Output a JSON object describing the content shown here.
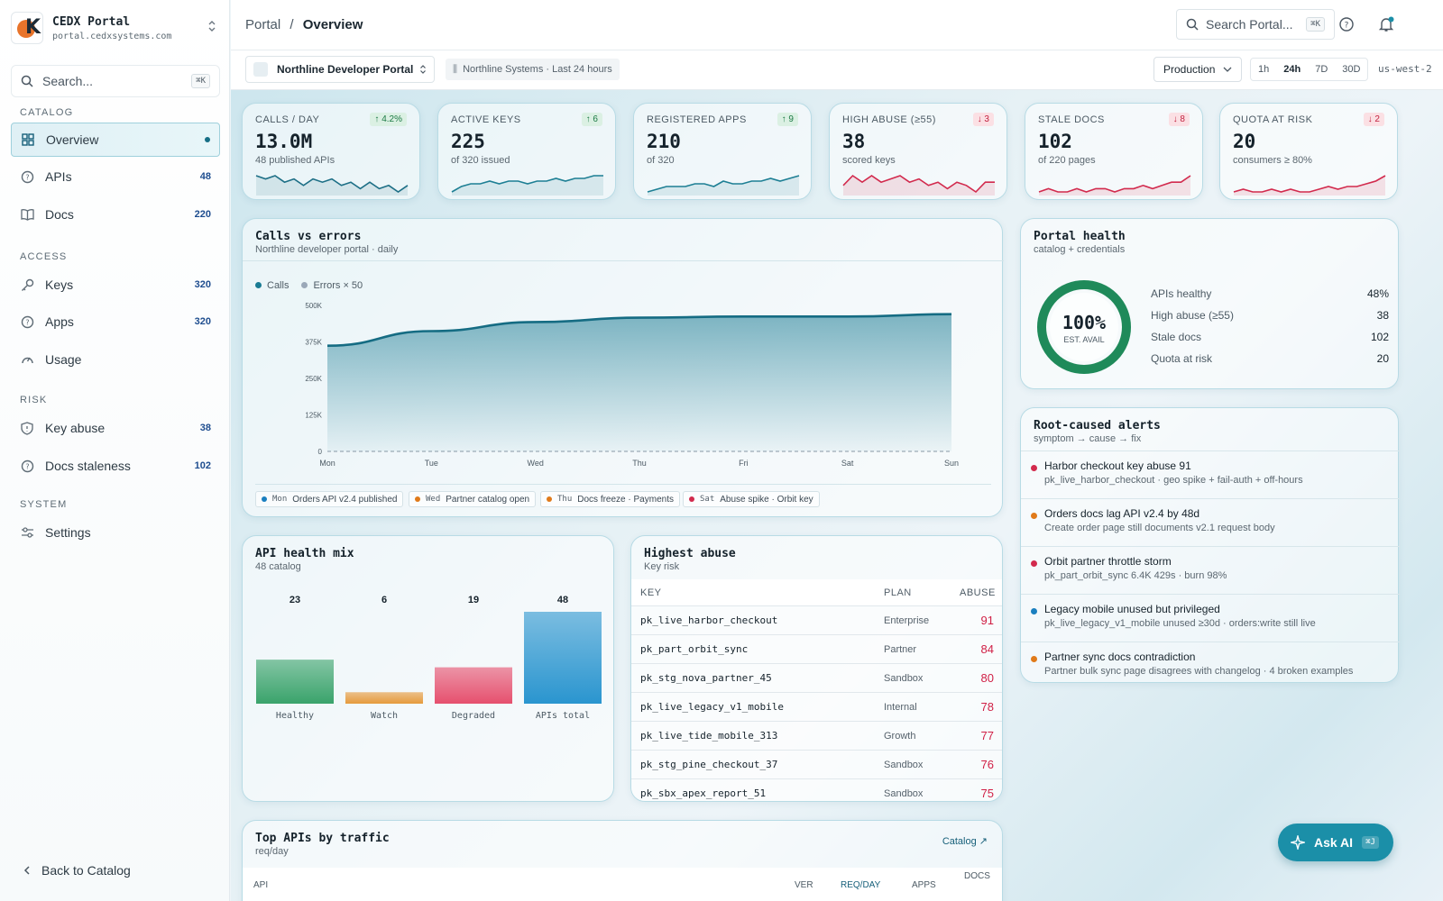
{
  "sidebar": {
    "brand_title": "CEDX Portal",
    "brand_sub": "portal.cedxsystems.com",
    "search_placeholder": "Search...",
    "search_kbd": "⌘K",
    "sections": [
      "CATALOG",
      "ACCESS",
      "RISK",
      "SYSTEM"
    ],
    "items": [
      {
        "label": "Overview",
        "count": ""
      },
      {
        "label": "APIs",
        "count": "48"
      },
      {
        "label": "Docs",
        "count": "220"
      },
      {
        "label": "Keys",
        "count": "320"
      },
      {
        "label": "Apps",
        "count": "320"
      },
      {
        "label": "Usage",
        "count": ""
      },
      {
        "label": "Key abuse",
        "count": "38"
      },
      {
        "label": "Docs staleness",
        "count": "102"
      },
      {
        "label": "Settings",
        "count": ""
      }
    ],
    "back": "Back to Catalog"
  },
  "header": {
    "crumb_root": "Portal",
    "crumb_sep": "/",
    "crumb_current": "Overview",
    "search_placeholder": "Search Portal...",
    "search_kbd": "⌘K"
  },
  "subbar": {
    "portal": "Northline Developer Portal",
    "context": "Northline Systems · Last 24 hours",
    "env": "Production",
    "ranges": [
      "1h",
      "24h",
      "7D",
      "30D"
    ],
    "active_range": "24h",
    "region": "us-west-2"
  },
  "kpis": [
    {
      "label": "CALLS / DAY",
      "value": "13.0M",
      "sub": "48 published APIs",
      "delta": "↑ 4.2%",
      "dir": "up",
      "spark": [
        6,
        5,
        6,
        4,
        5,
        3,
        5,
        4,
        5,
        3,
        4,
        2,
        4,
        2,
        3,
        1,
        3
      ],
      "color": "#1d6f86"
    },
    {
      "label": "ACTIVE KEYS",
      "value": "225",
      "sub": "of 320 issued",
      "delta": "↑ 6",
      "dir": "up",
      "spark": [
        1,
        3,
        4,
        4,
        5,
        4,
        5,
        5,
        4,
        5,
        5,
        6,
        5,
        6,
        6,
        7,
        7
      ],
      "color": "#1d7f94"
    },
    {
      "label": "REGISTERED APPS",
      "value": "210",
      "sub": "of 320",
      "delta": "↑ 9",
      "dir": "up",
      "spark": [
        1,
        2,
        3,
        3,
        3,
        4,
        4,
        3,
        5,
        4,
        4,
        5,
        5,
        6,
        5,
        6,
        7
      ],
      "color": "#1d7f94"
    },
    {
      "label": "HIGH ABUSE (≥55)",
      "value": "38",
      "sub": "scored keys",
      "delta": "↓ 3",
      "dir": "down",
      "spark": [
        3,
        6,
        4,
        6,
        4,
        5,
        6,
        4,
        5,
        3,
        4,
        2,
        4,
        3,
        1,
        4,
        4
      ],
      "color": "#d22a4d"
    },
    {
      "label": "STALE DOCS",
      "value": "102",
      "sub": "of 220 pages",
      "delta": "↓ 8",
      "dir": "down",
      "spark": [
        2,
        3,
        2,
        2,
        3,
        2,
        3,
        3,
        2,
        3,
        3,
        4,
        3,
        4,
        5,
        5,
        7
      ],
      "color": "#d22a4d"
    },
    {
      "label": "QUOTA AT RISK",
      "value": "20",
      "sub": "consumers ≥ 80%",
      "delta": "↓ 2",
      "dir": "down",
      "spark": [
        2,
        3,
        2,
        2,
        3,
        2,
        3,
        2,
        2,
        3,
        4,
        3,
        4,
        4,
        5,
        6,
        8
      ],
      "color": "#d22a4d"
    }
  ],
  "calls_chart": {
    "title": "Calls vs errors",
    "subtitle": "Northline developer portal · daily",
    "legend": [
      {
        "name": "Calls",
        "color": "#1a7b93"
      },
      {
        "name": "Errors × 50",
        "color": "#9aa8b8"
      }
    ],
    "chart_data": {
      "type": "area",
      "categories": [
        "Mon",
        "Tue",
        "Wed",
        "Thu",
        "Fri",
        "Sat",
        "Sun"
      ],
      "series": [
        {
          "name": "Calls",
          "values": [
            362000,
            412000,
            443000,
            458000,
            462000,
            462000,
            470000
          ]
        },
        {
          "name": "Errors × 50",
          "values": [
            0,
            0,
            0,
            0,
            0,
            0,
            0
          ]
        }
      ],
      "yticks": [
        "0",
        "125K",
        "250K",
        "375K",
        "500K"
      ],
      "ylim": [
        0,
        500000
      ]
    },
    "annotations": [
      {
        "day": "Mon",
        "text": "Orders API v2.4 published",
        "color": "#1a7fbf"
      },
      {
        "day": "Wed",
        "text": "Partner catalog open",
        "color": "#e07a1a"
      },
      {
        "day": "Thu",
        "text": "Docs freeze · Payments",
        "color": "#e07a1a"
      },
      {
        "day": "Sat",
        "text": "Abuse spike · Orbit key",
        "color": "#d22a4d"
      }
    ]
  },
  "portal_health": {
    "title": "Portal health",
    "subtitle": "catalog + credentials",
    "gauge_value": "100%",
    "gauge_label": "EST. AVAIL",
    "gauge_fraction": 1.0,
    "rows": [
      {
        "label": "APIs healthy",
        "value": "48%"
      },
      {
        "label": "High abuse (≥55)",
        "value": "38"
      },
      {
        "label": "Stale docs",
        "value": "102"
      },
      {
        "label": "Quota at risk",
        "value": "20"
      }
    ]
  },
  "alerts": {
    "title": "Root-caused alerts",
    "subtitle": "symptom → cause → fix",
    "items": [
      {
        "title": "Harbor checkout key abuse 91",
        "sub": "pk_live_harbor_checkout · geo spike + fail-auth + off-hours",
        "color": "#d22a4d"
      },
      {
        "title": "Orders docs lag API v2.4 by 48d",
        "sub": "Create order page still documents v2.1 request body",
        "color": "#e07a1a"
      },
      {
        "title": "Orbit partner throttle storm",
        "sub": "pk_part_orbit_sync 6.4K 429s · burn 98%",
        "color": "#d22a4d"
      },
      {
        "title": "Legacy mobile unused but privileged",
        "sub": "pk_live_legacy_v1_mobile unused ≥30d · orders:write still live",
        "color": "#1a7fbf"
      },
      {
        "title": "Partner sync docs contradiction",
        "sub": "Partner bulk sync page disagrees with changelog · 4 broken examples",
        "color": "#e07a1a"
      }
    ]
  },
  "health_mix": {
    "title": "API health mix",
    "subtitle": "48 catalog",
    "chart_data": {
      "type": "bar",
      "categories": [
        "Healthy",
        "Watch",
        "Degraded",
        "APIs total"
      ],
      "values": [
        23,
        6,
        19,
        48
      ],
      "colors": [
        "#3aa36b",
        "#e69a3c",
        "#e6506e",
        "#2a95cf"
      ]
    }
  },
  "abuse": {
    "title": "Highest abuse",
    "subtitle": "Key risk",
    "columns": [
      "KEY",
      "PLAN",
      "ABUSE"
    ],
    "rows": [
      {
        "key": "pk_live_harbor_checkout",
        "plan": "Enterprise",
        "score": "91"
      },
      {
        "key": "pk_part_orbit_sync",
        "plan": "Partner",
        "score": "84"
      },
      {
        "key": "pk_stg_nova_partner_45",
        "plan": "Sandbox",
        "score": "80"
      },
      {
        "key": "pk_live_legacy_v1_mobile",
        "plan": "Internal",
        "score": "78"
      },
      {
        "key": "pk_live_tide_mobile_313",
        "plan": "Growth",
        "score": "77"
      },
      {
        "key": "pk_stg_pine_checkout_37",
        "plan": "Sandbox",
        "score": "76"
      },
      {
        "key": "pk_sbx_apex_report_51",
        "plan": "Sandbox",
        "score": "75"
      }
    ]
  },
  "top_apis": {
    "title": "Top APIs by traffic",
    "subtitle": "req/day",
    "link": "Catalog ↗",
    "columns": [
      "API",
      "VER",
      "REQ/DAY",
      "APPS",
      "DOCS"
    ]
  },
  "ask_ai": {
    "label": "Ask AI",
    "kbd": "⌘J"
  }
}
